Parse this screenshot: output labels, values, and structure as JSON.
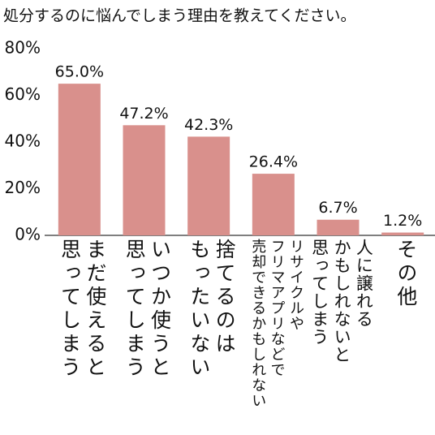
{
  "chart_data": {
    "type": "bar",
    "title": "処分するのに悩んでしまう理由を教えてください。",
    "categories": [
      "まだ使えると\n思ってしまう",
      "いつか使うと\n思ってしまう",
      "捨てるのは\nもったいない",
      "リサイクルや\nフリマアプリなどで\n売却できるかもしれない",
      "人に譲れる\nかもしれないと\n思ってしまう",
      "その他"
    ],
    "values": [
      65.0,
      47.2,
      42.3,
      26.4,
      6.7,
      1.2
    ],
    "value_labels": [
      "65.0%",
      "47.2%",
      "42.3%",
      "26.4%",
      "6.7%",
      "1.2%"
    ],
    "color": "#d9908c",
    "ylim": [
      0,
      80
    ],
    "yticks": [
      {
        "value": 0,
        "label": "0%"
      },
      {
        "value": 20,
        "label": "20%"
      },
      {
        "value": 40,
        "label": "40%"
      },
      {
        "value": 60,
        "label": "60%"
      },
      {
        "value": 80,
        "label": "80%"
      }
    ],
    "grid": false
  }
}
